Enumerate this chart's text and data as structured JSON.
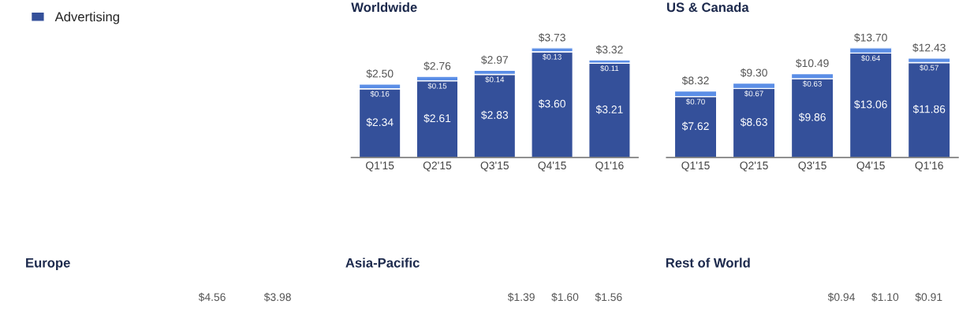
{
  "chart_data": [
    {
      "type": "bar",
      "title": "Worldwide",
      "stacked": true,
      "legend": "left",
      "grid": false,
      "categories": [
        "Q1'15",
        "Q2'15",
        "Q3'15",
        "Q4'15",
        "Q1'16"
      ],
      "series": [
        {
          "name": "Advertising",
          "color": "#34509a",
          "values": [
            2.34,
            2.61,
            2.83,
            3.6,
            3.21
          ],
          "value_labels": [
            "$2.34",
            "$2.61",
            "$2.83",
            "$3.60",
            "$3.21"
          ]
        },
        {
          "color": "#5b8ee6",
          "values": [
            0.16,
            0.15,
            0.14,
            0.13,
            0.11
          ],
          "value_labels": [
            "$0.16",
            "$0.15",
            "$0.14",
            "$0.13",
            "$0.11"
          ]
        }
      ],
      "totals": [
        "$2.50",
        "$2.76",
        "$2.97",
        "$3.73",
        "$3.32"
      ]
    },
    {
      "type": "bar",
      "title": "US & Canada",
      "stacked": true,
      "grid": false,
      "categories": [
        "Q1'15",
        "Q2'15",
        "Q3'15",
        "Q4'15",
        "Q1'16"
      ],
      "series": [
        {
          "color": "#34509a",
          "values": [
            7.62,
            8.63,
            9.86,
            13.06,
            11.86
          ],
          "value_labels": [
            "$7.62",
            "$8.63",
            "$9.86",
            "$13.06",
            "$11.86"
          ]
        },
        {
          "color": "#5b8ee6",
          "values": [
            0.7,
            0.67,
            0.63,
            0.64,
            0.57
          ],
          "value_labels": [
            "$0.70",
            "$0.67",
            "$0.63",
            "$0.64",
            "$0.57"
          ]
        }
      ],
      "totals": [
        "$8.32",
        "$9.30",
        "$10.49",
        "$13.70",
        "$12.43"
      ]
    },
    {
      "type": "other",
      "title": "Europe",
      "annotations": [
        "$4.56",
        "$3.98"
      ]
    },
    {
      "type": "other",
      "title": "Asia-Pacific",
      "annotations": [
        "$1.39",
        "$1.60",
        "$1.56"
      ]
    },
    {
      "type": "other",
      "title": "Rest of World",
      "annotations": [
        "$0.94",
        "$1.10",
        "$0.91"
      ]
    }
  ]
}
